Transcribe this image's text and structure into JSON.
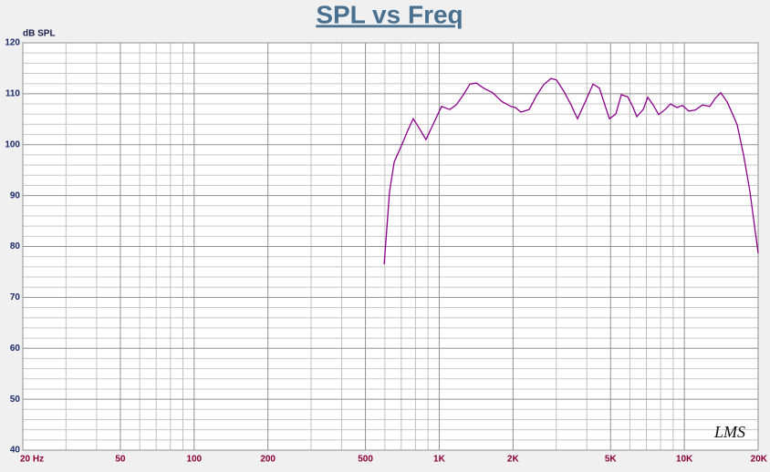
{
  "chart_data": {
    "type": "line",
    "title": "SPL vs Freq",
    "y_label": "dB SPL",
    "logo": "LMS",
    "xscale": "log",
    "xlim": [
      20,
      20000
    ],
    "ylim": [
      40,
      120
    ],
    "xticks": [
      {
        "value": 20,
        "label": "20 Hz"
      },
      50,
      100,
      200,
      500,
      {
        "value": 1000,
        "label": "1K"
      },
      {
        "value": 2000,
        "label": "2K"
      },
      {
        "value": 5000,
        "label": "5K"
      },
      {
        "value": 10000,
        "label": "10K"
      },
      {
        "value": 20000,
        "label": "20K"
      }
    ],
    "yticks": [
      40,
      50,
      60,
      70,
      80,
      90,
      100,
      110,
      120
    ],
    "xgrid_minor": [
      30,
      40,
      60,
      70,
      80,
      90,
      300,
      400,
      600,
      700,
      800,
      900,
      3000,
      4000,
      6000,
      7000,
      8000,
      9000
    ],
    "ygrid_minor": [
      42,
      44,
      46,
      48,
      52,
      54,
      56,
      58,
      62,
      64,
      66,
      68,
      72,
      74,
      76,
      78,
      82,
      84,
      86,
      88,
      92,
      94,
      96,
      98,
      102,
      104,
      106,
      108,
      112,
      114,
      116,
      118
    ],
    "grid": true,
    "series": [
      {
        "color": "#8b008b",
        "x": [
          596,
          627,
          655,
          701,
          744,
          783,
          825,
          883,
          938,
          1022,
          1104,
          1172,
          1255,
          1333,
          1415,
          1516,
          1652,
          1799,
          1960,
          2046,
          2154,
          2327,
          2492,
          2669,
          2858,
          3009,
          3222,
          3452,
          3665,
          3926,
          4240,
          4501,
          4738,
          4947,
          5253,
          5530,
          5872,
          6181,
          6397,
          6792,
          7090,
          7464,
          7857,
          8343,
          8784,
          9330,
          9821,
          10428,
          11070,
          11858,
          12700,
          13366,
          14070,
          14941,
          15728,
          16420,
          17436,
          18512,
          20000
        ],
        "values": [
          76.5,
          90.8,
          96.6,
          99.8,
          102.8,
          105.1,
          103.4,
          101.0,
          103.7,
          107.5,
          106.9,
          107.8,
          109.8,
          111.9,
          112.1,
          111.1,
          110.2,
          108.5,
          107.5,
          107.3,
          106.4,
          106.9,
          109.6,
          111.8,
          113.0,
          112.7,
          110.5,
          107.8,
          105.1,
          108.2,
          111.9,
          111.1,
          107.8,
          105.1,
          106.0,
          109.8,
          109.4,
          107.3,
          105.5,
          106.9,
          109.3,
          107.8,
          105.9,
          106.9,
          108.0,
          107.3,
          107.7,
          106.6,
          106.8,
          107.8,
          107.5,
          109.1,
          110.2,
          108.4,
          106.0,
          103.9,
          98.0,
          90.8,
          78.7
        ]
      }
    ]
  }
}
